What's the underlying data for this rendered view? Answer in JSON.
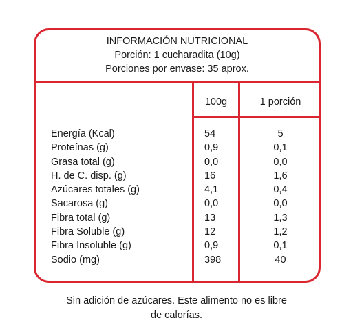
{
  "header": {
    "title": "INFORMACIÓN NUTRICIONAL",
    "portion": "Porción: 1 cucharadita (10g)",
    "servings": "Porciones por envase: 35 aprox."
  },
  "columns": {
    "per100": "100g",
    "perPortion": "1 porción"
  },
  "rows": [
    {
      "label": "Energía (Kcal)",
      "per100": "54",
      "perPortion": "5"
    },
    {
      "label": "Proteínas (g)",
      "per100": "0,9",
      "perPortion": "0,1"
    },
    {
      "label": "Grasa total (g)",
      "per100": "0,0",
      "perPortion": "0,0"
    },
    {
      "label": "H. de C. disp. (g)",
      "per100": "16",
      "perPortion": "1,6"
    },
    {
      "label": "Azúcares totales (g)",
      "per100": "4,1",
      "perPortion": "0,4"
    },
    {
      "label": "Sacarosa (g)",
      "per100": "0,0",
      "perPortion": "0,0"
    },
    {
      "label": "Fibra total (g)",
      "per100": "13",
      "perPortion": "1,3"
    },
    {
      "label": "Fibra Soluble (g)",
      "per100": "12",
      "perPortion": "1,2"
    },
    {
      "label": "Fibra Insoluble (g)",
      "per100": "0,9",
      "perPortion": "0,1"
    },
    {
      "label": "Sodio (mg)",
      "per100": "398",
      "perPortion": "40"
    }
  ],
  "footer": {
    "line1": "Sin adición de azúcares. Este alimento no es libre",
    "line2": "de calorías."
  }
}
